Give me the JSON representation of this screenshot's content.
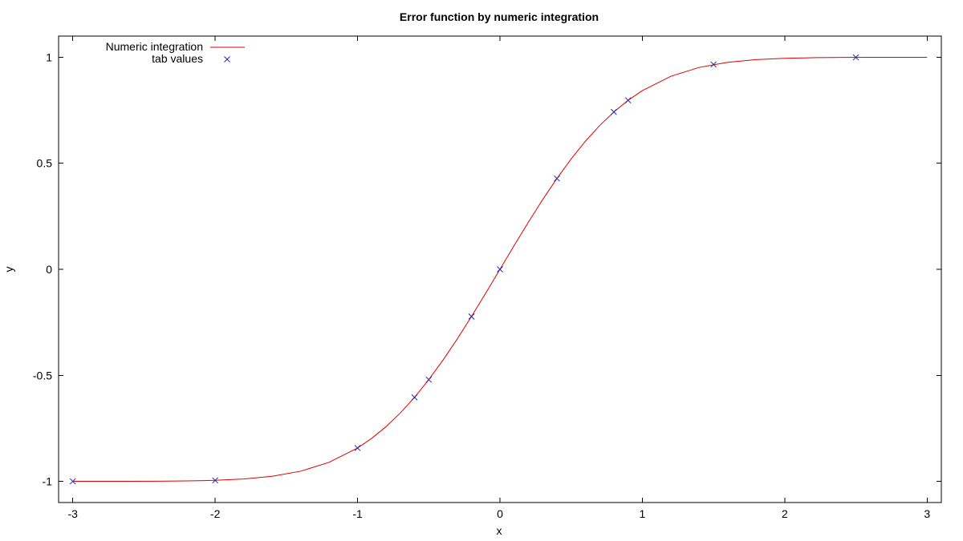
{
  "chart_data": {
    "type": "line",
    "title": "Error function by numeric integration",
    "xlabel": "x",
    "ylabel": "y",
    "xlim": [
      -3.1,
      3.1
    ],
    "ylim": [
      -1.1,
      1.1
    ],
    "xticks": [
      -3,
      -2,
      -1,
      0,
      1,
      2,
      3
    ],
    "xtick_labels": [
      "-3",
      "-2",
      "-1",
      "0",
      "1",
      "2",
      "3"
    ],
    "yticks": [
      -1,
      -0.5,
      0,
      0.5,
      1
    ],
    "ytick_labels": [
      "-1",
      "-0.5",
      "0",
      "0.5",
      "1"
    ],
    "grid": false,
    "legend_position": "top-left",
    "series": [
      {
        "name": "Numeric integration",
        "kind": "line",
        "color": "#e00000",
        "x": [
          -3.0,
          -2.8,
          -2.6,
          -2.4,
          -2.2,
          -2.0,
          -1.8,
          -1.6,
          -1.4,
          -1.2,
          -1.0,
          -0.9,
          -0.8,
          -0.7,
          -0.6,
          -0.5,
          -0.4,
          -0.3,
          -0.2,
          -0.1,
          0.0,
          0.1,
          0.2,
          0.3,
          0.4,
          0.5,
          0.6,
          0.7,
          0.8,
          0.9,
          1.0,
          1.2,
          1.4,
          1.6,
          1.8,
          2.0,
          2.2,
          2.4,
          2.6,
          2.8,
          3.0
        ],
        "y": [
          -1.0,
          -0.9999,
          -0.9998,
          -0.9993,
          -0.9981,
          -0.9953,
          -0.9891,
          -0.9763,
          -0.9523,
          -0.9103,
          -0.8427,
          -0.7969,
          -0.7421,
          -0.6778,
          -0.6039,
          -0.5205,
          -0.4284,
          -0.3286,
          -0.2227,
          -0.1125,
          0.0,
          0.1125,
          0.2227,
          0.3286,
          0.4284,
          0.5205,
          0.6039,
          0.6778,
          0.7421,
          0.7969,
          0.8427,
          0.9103,
          0.9523,
          0.9763,
          0.9891,
          0.9953,
          0.9981,
          0.9993,
          0.9998,
          0.9999,
          1.0
        ]
      },
      {
        "name": "tab values",
        "kind": "points",
        "marker": "x",
        "color": "#2020c0",
        "x": [
          -3.0,
          -2.0,
          -1.0,
          -0.6,
          -0.5,
          -0.2,
          0.0,
          0.4,
          0.8,
          0.9,
          1.5,
          2.5
        ],
        "y": [
          -1.0,
          -0.9953,
          -0.8427,
          -0.6039,
          -0.5205,
          -0.2227,
          0.0,
          0.4284,
          0.7421,
          0.7969,
          0.9661,
          0.9996
        ]
      }
    ]
  }
}
